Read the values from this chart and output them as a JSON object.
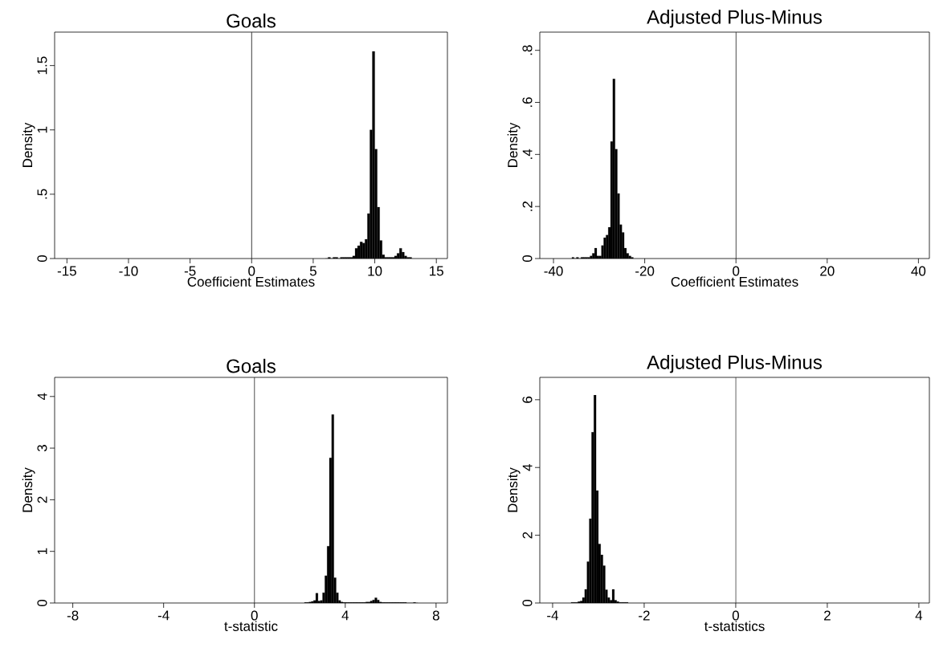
{
  "chart_data": [
    {
      "type": "histogram",
      "title": "Goals",
      "xlabel": "Coefficient Estimates",
      "ylabel": "Density",
      "color": "#000000",
      "bins": [
        6.0,
        6.2,
        6.4,
        6.6,
        6.8,
        7.0,
        7.2,
        7.4,
        7.6,
        7.8,
        8.0,
        8.2,
        8.4,
        8.6,
        8.8,
        9.0,
        9.2,
        9.4,
        9.6,
        9.8,
        10.0,
        10.2,
        10.4,
        10.6,
        10.8,
        11.0,
        11.2,
        11.4,
        11.6,
        11.8,
        12.0,
        12.2,
        12.4,
        12.6,
        12.8,
        13.0
      ],
      "values": [
        0,
        0.01,
        0,
        0.01,
        0.01,
        0,
        0.01,
        0.01,
        0.01,
        0.01,
        0.01,
        0.02,
        0.08,
        0.1,
        0.13,
        0.12,
        0.15,
        0.35,
        1.0,
        1.61,
        0.85,
        0.4,
        0.14,
        0.03,
        0.01,
        0.01,
        0.01,
        0.01,
        0.02,
        0.04,
        0.08,
        0.05,
        0.02,
        0.01,
        0.01
      ],
      "xlim": [
        -16,
        15.9
      ],
      "ylim": [
        0,
        1.76
      ],
      "xticks": [
        -15,
        -10,
        -5,
        0,
        5,
        10,
        15
      ],
      "yticks": [
        0,
        {
          "value": 0.5,
          "label": ".5"
        },
        1,
        1.5
      ],
      "ref_lines": [
        {
          "axis": "x",
          "value": 0
        }
      ]
    },
    {
      "type": "histogram",
      "title": "Adjusted Plus-Minus",
      "xlabel": "Coefficient Estimates",
      "ylabel": "Density",
      "color": "#000000",
      "bins": [
        -36,
        -35.5,
        -35,
        -34.5,
        -34,
        -33.5,
        -33,
        -32.5,
        -32,
        -31.5,
        -31,
        -30.5,
        -30,
        -29.5,
        -29,
        -28.5,
        -28,
        -27.5,
        -27,
        -26.5,
        -26,
        -25.5,
        -25,
        -24.5,
        -24,
        -23.5,
        -23,
        -22.5
      ],
      "values": [
        0.005,
        0,
        0.005,
        0,
        0.005,
        0.005,
        0.005,
        0.005,
        0.01,
        0.02,
        0.04,
        0.01,
        0.01,
        0.05,
        0.08,
        0.09,
        0.12,
        0.45,
        0.69,
        0.42,
        0.25,
        0.13,
        0.1,
        0.04,
        0.02,
        0.01,
        0.005
      ],
      "xlim": [
        -43,
        42.4
      ],
      "ylim": [
        0,
        0.87
      ],
      "xticks": [
        -40,
        -20,
        0,
        20,
        40
      ],
      "yticks": [
        0,
        {
          "value": 0.2,
          "label": ".2"
        },
        {
          "value": 0.4,
          "label": ".4"
        },
        {
          "value": 0.6,
          "label": ".6"
        },
        {
          "value": 0.8,
          "label": ".8"
        }
      ],
      "ref_lines": [
        {
          "axis": "x",
          "value": 0
        }
      ]
    },
    {
      "type": "histogram",
      "title": "Goals",
      "xlabel": "t-statistic",
      "ylabel": "Density",
      "color": "#000000",
      "bins": [
        2.2,
        2.3,
        2.4,
        2.5,
        2.6,
        2.7,
        2.8,
        2.9,
        3.0,
        3.1,
        3.2,
        3.3,
        3.4,
        3.5,
        3.6,
        3.7,
        3.8,
        3.9,
        4.0,
        4.1,
        4.2,
        4.3,
        4.4,
        4.5,
        4.6,
        4.7,
        4.8,
        4.9,
        5.0,
        5.1,
        5.2,
        5.3,
        5.4,
        5.5,
        5.6,
        5.7,
        5.8,
        5.9,
        6.0,
        6.1,
        6.2,
        6.3,
        6.4,
        6.5,
        6.6,
        6.7,
        6.8,
        6.9,
        7.0,
        7.1,
        7.2
      ],
      "values": [
        0.01,
        0.01,
        0.02,
        0.03,
        0.05,
        0.19,
        0.04,
        0.05,
        0.2,
        0.53,
        1.1,
        2.81,
        3.65,
        0.49,
        0.2,
        0.05,
        0.02,
        0.01,
        0.01,
        0.01,
        0.01,
        0.01,
        0.01,
        0.01,
        0.01,
        0.01,
        0.01,
        0.02,
        0.02,
        0.04,
        0.06,
        0.1,
        0.06,
        0.02,
        0.01,
        0.01,
        0.01,
        0.01,
        0.01,
        0.01,
        0.01,
        0.01,
        0.01,
        0.01,
        0.01,
        0,
        0,
        0,
        0.01,
        0
      ],
      "xlim": [
        -8.8,
        8.5
      ],
      "ylim": [
        0,
        4.37
      ],
      "xticks": [
        -8,
        -4,
        0,
        4,
        8
      ],
      "yticks": [
        0,
        1,
        2,
        3,
        4
      ],
      "ref_lines": [
        {
          "axis": "x",
          "value": 0
        }
      ]
    },
    {
      "type": "histogram",
      "title": "Adjusted Plus-Minus",
      "xlabel": "t-statistics",
      "ylabel": "Density",
      "color": "#000000",
      "bins": [
        -3.6,
        -3.55,
        -3.5,
        -3.45,
        -3.4,
        -3.35,
        -3.3,
        -3.25,
        -3.2,
        -3.15,
        -3.1,
        -3.05,
        -3.0,
        -2.95,
        -2.9,
        -2.85,
        -2.8,
        -2.75,
        -2.7,
        -2.65,
        -2.6,
        -2.55,
        -2.5,
        -2.45,
        -2.4,
        -2.35
      ],
      "values": [
        0.02,
        0.02,
        0.02,
        0.04,
        0.06,
        0.16,
        0.4,
        1.22,
        2.49,
        5.04,
        6.14,
        3.32,
        1.74,
        1.42,
        1.1,
        0.39,
        0.16,
        0.08,
        0.4,
        0.08,
        0.04,
        0.02,
        0.02,
        0.02,
        0.02
      ],
      "xlim": [
        -4.28,
        4.23
      ],
      "ylim": [
        0,
        6.66
      ],
      "xticks": [
        -4,
        -2,
        0,
        2,
        4
      ],
      "yticks": [
        0,
        2,
        4,
        6
      ],
      "ref_lines": [
        {
          "axis": "x",
          "value": 0
        }
      ]
    }
  ]
}
